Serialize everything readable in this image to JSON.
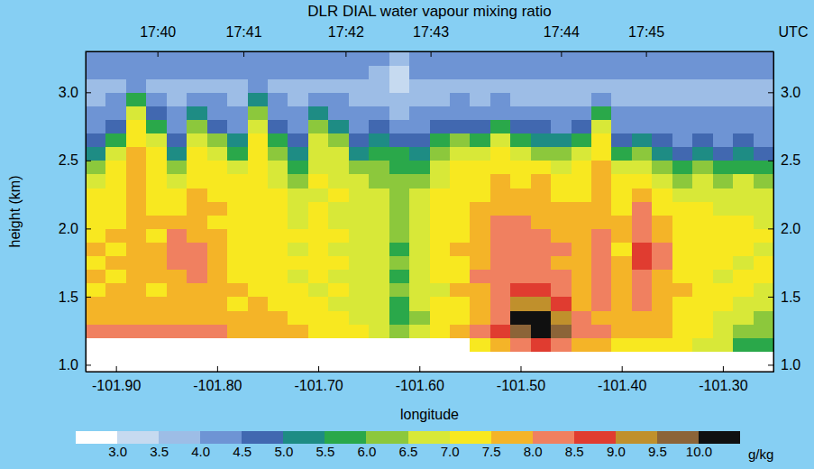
{
  "chart_data": {
    "type": "heatmap",
    "title": "DLR DIAL water vapour mixing ratio",
    "xlabel": "longitude",
    "ylabel": "height (km)",
    "x2label": "UTC",
    "xlim": [
      -101.93,
      -101.25
    ],
    "ylim": [
      0.95,
      3.3
    ],
    "xticks": [
      {
        "value": -101.9,
        "label": "-101.90"
      },
      {
        "value": -101.8,
        "label": "-101.80"
      },
      {
        "value": -101.7,
        "label": "-101.70"
      },
      {
        "value": -101.6,
        "label": "-101.60"
      },
      {
        "value": -101.5,
        "label": "-101.50"
      },
      {
        "value": -101.4,
        "label": "-101.40"
      },
      {
        "value": -101.3,
        "label": "-101.30"
      }
    ],
    "yticks": [
      {
        "value": 1.0,
        "label": "1.0"
      },
      1.5,
      {
        "value": 2.0,
        "label": "2.0"
      },
      2.5,
      {
        "value": 3.0,
        "label": "3.0"
      }
    ],
    "x2ticks": [
      {
        "value": -101.859,
        "label": "17:40"
      },
      {
        "value": -101.774,
        "label": "17:41"
      },
      {
        "value": -101.673,
        "label": "17:42"
      },
      {
        "value": -101.589,
        "label": "17:43"
      },
      {
        "value": -101.46,
        "label": "17:44"
      },
      {
        "value": -101.376,
        "label": "17:45"
      }
    ],
    "x": [
      -101.92,
      -101.9,
      -101.88,
      -101.86,
      -101.84,
      -101.82,
      -101.8,
      -101.78,
      -101.76,
      -101.74,
      -101.72,
      -101.7,
      -101.68,
      -101.66,
      -101.64,
      -101.62,
      -101.6,
      -101.58,
      -101.56,
      -101.54,
      -101.52,
      -101.5,
      -101.48,
      -101.46,
      -101.44,
      -101.42,
      -101.4,
      -101.38,
      -101.36,
      -101.34,
      -101.32,
      -101.3,
      -101.28,
      -101.26
    ],
    "y": [
      1.15,
      1.25,
      1.35,
      1.45,
      1.55,
      1.65,
      1.75,
      1.85,
      1.95,
      2.05,
      2.15,
      2.25,
      2.35,
      2.45,
      2.55,
      2.65,
      2.75,
      2.85,
      2.95,
      3.05,
      3.15,
      3.25
    ],
    "values": [
      [
        null,
        8.2,
        7.7,
        7.8,
        7.4,
        7.6,
        7.3,
        7.5,
        7.4,
        7.2,
        7.3,
        7.1,
        6.8,
        6.2,
        5.3,
        4.6,
        4.3,
        4.2,
        3.9,
        3.8,
        4.1,
        4.4
      ],
      [
        null,
        8.1,
        7.8,
        7.6,
        7.7,
        7.4,
        7.6,
        7.3,
        7.5,
        7.4,
        7.2,
        7.3,
        7.1,
        7.0,
        6.6,
        5.8,
        4.8,
        4.3,
        4.0,
        3.8,
        4.1,
        4.3
      ],
      [
        null,
        8.3,
        7.9,
        7.7,
        7.8,
        7.6,
        7.7,
        7.5,
        7.6,
        7.7,
        7.5,
        7.6,
        7.7,
        7.6,
        7.7,
        7.4,
        7.2,
        6.6,
        5.6,
        4.3,
        4.0,
        4.3
      ],
      [
        null,
        8.2,
        7.8,
        7.6,
        7.4,
        7.7,
        7.5,
        7.6,
        7.4,
        7.5,
        7.3,
        7.4,
        7.2,
        7.3,
        7.0,
        6.7,
        5.9,
        4.6,
        4.0,
        3.8,
        4.1,
        4.3
      ],
      [
        null,
        8.0,
        7.7,
        7.6,
        7.8,
        7.9,
        8.1,
        8.2,
        8.1,
        7.8,
        7.4,
        7.2,
        6.9,
        6.3,
        5.4,
        4.6,
        4.3,
        4.2,
        3.9,
        3.7,
        4.1,
        4.3
      ],
      [
        null,
        8.1,
        7.8,
        7.9,
        7.7,
        8.0,
        8.2,
        8.1,
        7.9,
        7.7,
        7.6,
        7.5,
        7.4,
        7.3,
        7.2,
        6.9,
        6.4,
        5.4,
        4.3,
        3.9,
        4.1,
        4.3
      ],
      [
        null,
        8.2,
        7.7,
        7.6,
        7.8,
        7.6,
        7.7,
        7.5,
        7.6,
        7.4,
        7.5,
        7.3,
        7.2,
        7.1,
        6.8,
        6.0,
        4.8,
        4.3,
        4.0,
        3.8,
        4.1,
        4.3
      ],
      [
        null,
        7.9,
        7.6,
        7.4,
        7.5,
        7.3,
        7.4,
        7.2,
        7.3,
        7.2,
        7.1,
        7.2,
        7.0,
        6.6,
        5.9,
        5.0,
        4.4,
        4.2,
        3.9,
        3.8,
        4.1,
        4.3
      ],
      [
        null,
        7.8,
        7.6,
        7.5,
        7.3,
        7.4,
        7.2,
        7.3,
        7.4,
        7.2,
        7.3,
        7.4,
        7.2,
        7.3,
        7.2,
        7.0,
        6.7,
        6.1,
        5.2,
        4.2,
        4.0,
        4.3
      ],
      [
        null,
        7.7,
        7.5,
        7.2,
        7.4,
        7.1,
        7.3,
        7.2,
        7.0,
        7.1,
        7.2,
        7.0,
        6.9,
        6.8,
        6.4,
        5.7,
        4.7,
        4.3,
        4.0,
        3.8,
        4.1,
        4.3
      ],
      [
        null,
        7.5,
        7.2,
        7.0,
        7.1,
        6.9,
        7.1,
        6.8,
        7.0,
        6.9,
        6.7,
        6.8,
        6.4,
        5.8,
        5.0,
        4.5,
        4.3,
        4.1,
        3.9,
        3.8,
        4.1,
        4.3
      ],
      [
        null,
        7.4,
        7.1,
        7.2,
        6.9,
        7.1,
        7.0,
        7.2,
        7.1,
        7.0,
        7.1,
        6.9,
        7.0,
        6.8,
        6.7,
        6.5,
        6.2,
        5.3,
        4.4,
        3.9,
        4.1,
        4.3
      ],
      [
        null,
        7.3,
        7.1,
        6.9,
        7.0,
        6.8,
        7.0,
        6.9,
        7.1,
        6.9,
        6.8,
        7.0,
        6.8,
        6.7,
        6.5,
        6.0,
        5.2,
        4.4,
        4.0,
        3.8,
        4.1,
        4.3
      ],
      [
        null,
        7.1,
        6.9,
        6.7,
        6.9,
        6.8,
        6.7,
        6.9,
        6.8,
        6.7,
        6.6,
        6.8,
        6.5,
        6.1,
        5.3,
        4.6,
        4.3,
        4.1,
        3.9,
        3.8,
        4.1,
        4.3
      ],
      [
        null,
        6.8,
        6.6,
        6.7,
        6.5,
        6.7,
        6.6,
        6.5,
        6.6,
        6.7,
        6.5,
        6.6,
        6.4,
        6.3,
        5.9,
        5.2,
        4.5,
        4.2,
        3.9,
        3.5,
        3.6,
        4.2
      ],
      [
        null,
        6.1,
        5.8,
        5.9,
        6.0,
        5.8,
        6.1,
        5.9,
        6.2,
        6.0,
        6.3,
        6.1,
        6.0,
        5.9,
        5.6,
        4.9,
        4.3,
        3.9,
        3.5,
        3.2,
        3.3,
        3.6
      ],
      [
        null,
        6.6,
        6.4,
        6.6,
        6.5,
        6.7,
        6.6,
        6.8,
        6.7,
        6.6,
        6.8,
        6.5,
        6.3,
        5.9,
        5.1,
        4.5,
        4.3,
        4.1,
        3.9,
        3.7,
        4.0,
        4.3
      ],
      [
        null,
        7.2,
        7.0,
        7.1,
        6.9,
        7.1,
        7.0,
        7.2,
        7.1,
        7.0,
        7.2,
        7.1,
        6.9,
        6.8,
        6.3,
        5.5,
        4.6,
        4.2,
        3.9,
        3.8,
        4.1,
        4.3
      ],
      [
        null,
        7.6,
        7.4,
        7.3,
        7.5,
        7.4,
        7.3,
        7.5,
        7.4,
        7.3,
        7.2,
        7.3,
        7.1,
        7.0,
        6.7,
        6.0,
        4.9,
        4.3,
        4.0,
        3.8,
        4.1,
        4.3
      ],
      [
        7.4,
        8.1,
        7.9,
        7.8,
        7.9,
        8.0,
        7.8,
        7.9,
        7.7,
        7.8,
        7.6,
        7.4,
        7.2,
        7.0,
        6.5,
        5.6,
        4.6,
        4.2,
        3.9,
        3.8,
        4.1,
        4.3
      ],
      [
        7.6,
        8.6,
        8.3,
        8.4,
        8.2,
        8.3,
        8.1,
        8.2,
        8.3,
        8.1,
        7.9,
        7.7,
        7.5,
        7.3,
        7.0,
        6.5,
        5.5,
        4.4,
        4.0,
        3.8,
        4.1,
        4.3
      ],
      [
        8.0,
        9.6,
        10.2,
        9.4,
        8.6,
        8.3,
        8.4,
        8.2,
        8.0,
        8.1,
        7.8,
        7.6,
        7.4,
        7.2,
        6.7,
        5.8,
        4.6,
        4.2,
        3.9,
        3.8,
        4.1,
        4.3
      ],
      [
        8.6,
        10.3,
        10.1,
        9.2,
        8.7,
        8.2,
        8.3,
        8.1,
        8.2,
        7.9,
        7.7,
        7.8,
        7.5,
        7.1,
        6.4,
        5.4,
        4.5,
        4.2,
        3.9,
        3.8,
        4.1,
        4.3
      ],
      [
        8.4,
        9.8,
        9.1,
        8.6,
        8.3,
        8.1,
        7.9,
        8.0,
        7.8,
        7.7,
        7.6,
        7.4,
        7.2,
        6.8,
        6.0,
        5.1,
        4.4,
        4.2,
        3.9,
        3.8,
        4.1,
        4.3
      ],
      [
        7.6,
        8.2,
        8.0,
        7.8,
        7.9,
        7.7,
        7.8,
        7.6,
        7.7,
        7.5,
        7.6,
        7.4,
        7.3,
        7.1,
        6.6,
        5.7,
        4.6,
        4.2,
        3.9,
        3.8,
        4.1,
        4.3
      ],
      [
        7.5,
        8.1,
        7.9,
        8.0,
        8.2,
        8.3,
        8.1,
        8.2,
        8.0,
        7.9,
        7.8,
        7.9,
        7.7,
        7.6,
        7.4,
        7.1,
        6.6,
        5.7,
        4.4,
        3.9,
        4.1,
        4.3
      ],
      [
        7.3,
        7.9,
        7.7,
        7.6,
        7.8,
        7.5,
        7.7,
        7.4,
        7.6,
        7.5,
        7.3,
        7.2,
        7.0,
        6.5,
        5.6,
        4.7,
        4.3,
        4.1,
        3.9,
        3.8,
        4.1,
        4.3
      ],
      [
        7.4,
        7.8,
        7.9,
        8.0,
        8.2,
        8.4,
        8.6,
        8.5,
        8.4,
        8.3,
        8.1,
        7.6,
        7.3,
        6.8,
        6.0,
        5.0,
        4.4,
        4.2,
        3.9,
        3.8,
        4.1,
        4.3
      ],
      [
        7.2,
        7.6,
        7.5,
        7.7,
        7.8,
        7.9,
        8.1,
        8.0,
        7.8,
        7.6,
        7.4,
        7.2,
        6.8,
        6.1,
        5.2,
        4.6,
        4.3,
        4.1,
        3.9,
        3.8,
        4.1,
        4.3
      ],
      [
        7.0,
        7.4,
        7.2,
        7.3,
        7.5,
        7.3,
        7.4,
        7.2,
        7.3,
        7.1,
        7.0,
        6.9,
        6.4,
        5.6,
        4.8,
        4.4,
        4.2,
        4.1,
        3.9,
        3.8,
        4.1,
        4.3
      ],
      [
        6.8,
        7.2,
        7.0,
        7.3,
        7.1,
        7.4,
        7.2,
        7.3,
        7.1,
        7.2,
        7.0,
        6.9,
        6.6,
        6.0,
        5.1,
        4.5,
        4.3,
        4.1,
        3.9,
        3.8,
        4.1,
        4.3
      ],
      [
        6.5,
        6.9,
        6.8,
        7.0,
        7.1,
        6.9,
        7.2,
        7.0,
        7.1,
        7.0,
        6.8,
        6.7,
        6.3,
        5.6,
        4.8,
        4.4,
        4.2,
        4.1,
        3.9,
        3.8,
        4.1,
        4.3
      ],
      [
        5.9,
        6.2,
        6.5,
        6.8,
        7.0,
        7.1,
        6.9,
        7.2,
        7.0,
        7.1,
        6.9,
        6.8,
        6.5,
        5.9,
        5.0,
        4.5,
        4.3,
        4.1,
        3.9,
        3.8,
        4.1,
        4.3
      ],
      [
        5.8,
        6.0,
        6.4,
        6.7,
        6.9,
        7.0,
        7.1,
        6.9,
        7.0,
        6.8,
        6.9,
        6.6,
        6.2,
        5.5,
        4.7,
        4.4,
        4.2,
        4.1,
        3.9,
        3.8,
        4.1,
        4.3
      ]
    ],
    "colorbar": {
      "label": "g/kg",
      "lim": [
        2.5,
        10.5
      ],
      "ticks": [
        {
          "value": 3.0,
          "label": "3.0"
        },
        3.5,
        {
          "value": 4.0,
          "label": "4.0"
        },
        4.5,
        {
          "value": 5.0,
          "label": "5.0"
        },
        5.5,
        {
          "value": 6.0,
          "label": "6.0"
        },
        6.5,
        {
          "value": 7.0,
          "label": "7.0"
        },
        7.5,
        {
          "value": 8.0,
          "label": "8.0"
        },
        8.5,
        {
          "value": 9.0,
          "label": "9.0"
        },
        9.5,
        {
          "value": 10.0,
          "label": "10.0"
        }
      ],
      "colors": [
        "#ffffff",
        "#c6daf0",
        "#9dbde6",
        "#6e94d4",
        "#4168b0",
        "#1e8c84",
        "#2aa84a",
        "#8cc83c",
        "#d8e838",
        "#f8e820",
        "#f4b428",
        "#f08060",
        "#e03c30",
        "#c0902c",
        "#8c6438",
        "#101010"
      ]
    }
  }
}
